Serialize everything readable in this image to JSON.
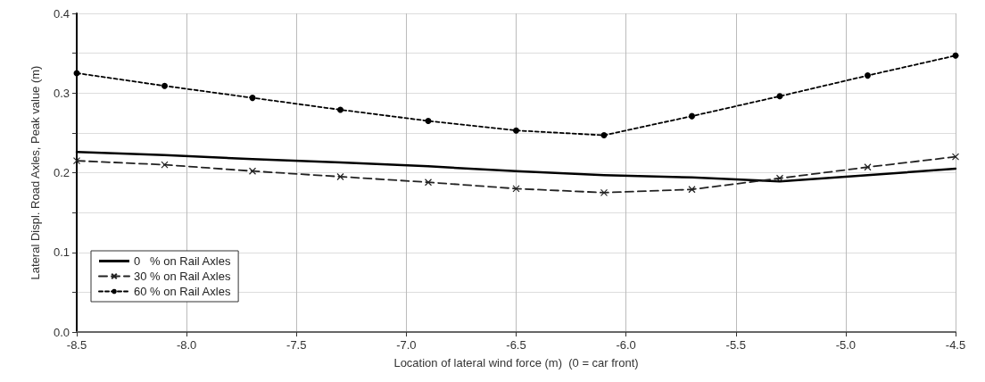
{
  "chart_data": {
    "type": "line",
    "xlabel": "Location of lateral wind force (m)  (0 = car front)",
    "ylabel": "Lateral Displ. Road Axles, Peak value (m)",
    "x": [
      -8.5,
      -8.1,
      -7.7,
      -7.3,
      -6.9,
      -6.5,
      -6.1,
      -5.7,
      -5.3,
      -4.9,
      -4.5
    ],
    "series": [
      {
        "name": "0   % on Rail Axles",
        "color": "#000000",
        "marker": "none",
        "line_style": "solid",
        "values": [
          0.226,
          0.222,
          0.217,
          0.213,
          0.208,
          0.202,
          0.197,
          0.194,
          0.189,
          0.197,
          0.205
        ]
      },
      {
        "name": "30 % on Rail Axles",
        "color": "#222222",
        "marker": "cross",
        "line_style": "dashed",
        "values": [
          0.215,
          0.21,
          0.202,
          0.195,
          0.188,
          0.18,
          0.175,
          0.179,
          0.193,
          0.207,
          0.22
        ]
      },
      {
        "name": "60 % on Rail Axles",
        "color": "#000000",
        "marker": "circle",
        "line_style": "dotted",
        "values": [
          0.325,
          0.309,
          0.294,
          0.279,
          0.265,
          0.253,
          0.247,
          0.271,
          0.296,
          0.322,
          0.347
        ]
      }
    ],
    "xlim": [
      -8.5,
      -4.5
    ],
    "xticks": [
      -8.5,
      {
        "value": -8,
        "label": "-8.0"
      },
      -7.5,
      {
        "value": -7,
        "label": "-7.0"
      },
      -6.5,
      {
        "value": -6,
        "label": "-6.0"
      },
      -5.5,
      {
        "value": -5,
        "label": "-5.0"
      },
      -4.5
    ],
    "ylim": [
      0,
      0.4
    ],
    "yticks": [
      {
        "value": 0,
        "label": "0.0"
      },
      {
        "value": 0.05,
        "label": null
      },
      0.1,
      {
        "value": 0.15,
        "label": null
      },
      0.2,
      {
        "value": 0.25,
        "label": null
      },
      0.3,
      {
        "value": 0.35,
        "label": null
      },
      0.4
    ],
    "grid": true,
    "legend": "bottom left"
  }
}
